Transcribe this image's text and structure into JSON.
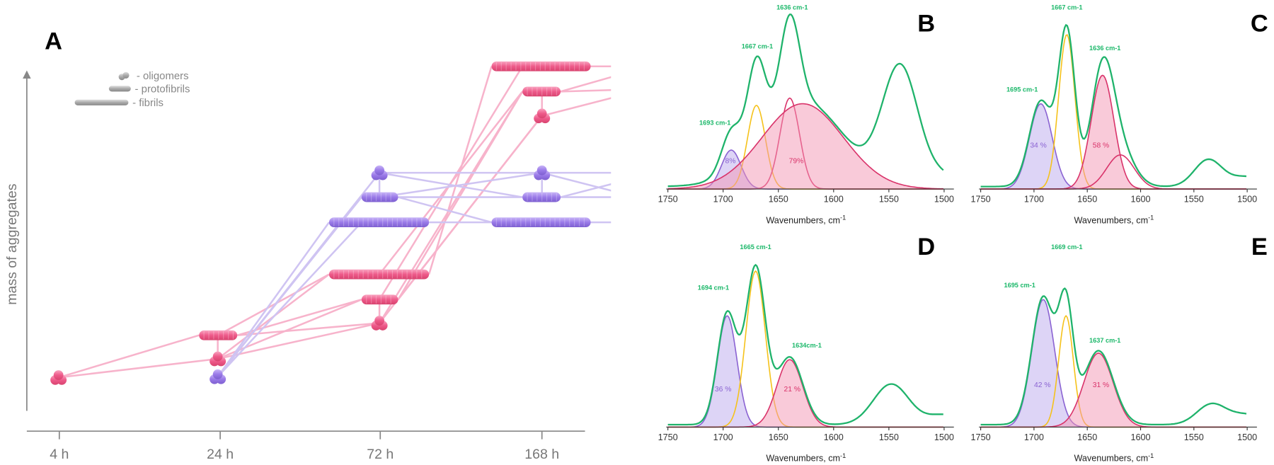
{
  "panel_a": {
    "label": "A",
    "y_axis_label": "mass of aggregates",
    "time_labels": [
      "4 h",
      "24 h",
      "72 h",
      "168 h"
    ],
    "legend": [
      "- oligomers",
      "- protofibrils",
      "- fibrils"
    ]
  },
  "spectra": [
    {
      "label": "B",
      "peak_labels": [
        "1636 cm-1",
        "1667 cm-1",
        "1693 cm-1"
      ],
      "percent_labels": [
        "8%",
        "79%"
      ],
      "x_ticks": [
        "1750",
        "1700",
        "1650",
        "1600",
        "1550",
        "1500"
      ],
      "x_axis_label": "Wavenumbers, cm",
      "x_axis_unit_sup": "-1"
    },
    {
      "label": "C",
      "peak_labels": [
        "1667  cm-1",
        "1636 cm-1",
        "1695 cm-1"
      ],
      "percent_labels": [
        "34 %",
        "58 %"
      ],
      "x_ticks": [
        "1750",
        "1700",
        "1650",
        "1600",
        "1550",
        "1500"
      ],
      "x_axis_label": "Wavenumbers, cm",
      "x_axis_unit_sup": "-1"
    },
    {
      "label": "D",
      "peak_labels": [
        "1665 cm-1",
        "1694 cm-1",
        "1634cm-1"
      ],
      "percent_labels": [
        "36 %",
        "21 %"
      ],
      "x_ticks": [
        "1750",
        "1700",
        "1650",
        "1600",
        "1550",
        "1500"
      ],
      "x_axis_label": "Wavenumbers, cm",
      "x_axis_unit_sup": "-1"
    },
    {
      "label": "E",
      "peak_labels": [
        "1669 cm-1",
        "1695 cm-1",
        "1637 cm-1"
      ],
      "percent_labels": [
        "42 %",
        "31 %"
      ],
      "x_ticks": [
        "1750",
        "1700",
        "1650",
        "1600",
        "1550",
        "1500"
      ],
      "x_axis_label": "Wavenumbers, cm",
      "x_axis_unit_sup": "-1"
    }
  ]
}
